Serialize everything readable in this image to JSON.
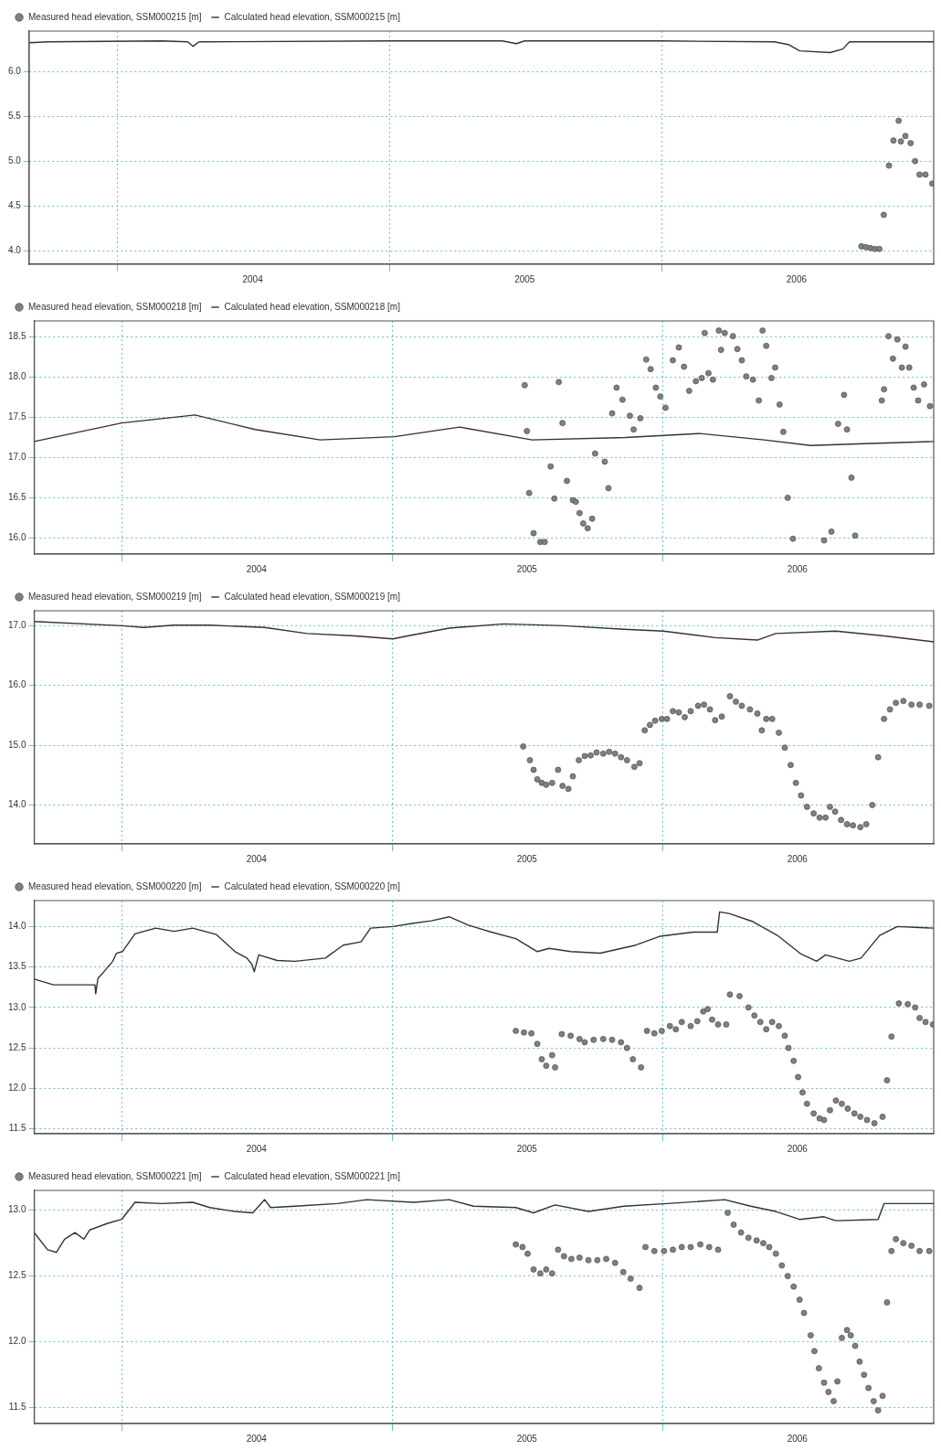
{
  "chart_data": [
    {
      "type": "line",
      "xlim": [
        "2003-09-05",
        "2007-01-01"
      ],
      "xticks": [
        {
          "value": "2004-01-01",
          "label": null
        },
        {
          "value": "2004-07-01",
          "label": "2004"
        },
        {
          "value": "2005-01-01",
          "label": null
        },
        {
          "value": "2005-07-01",
          "label": "2005"
        },
        {
          "value": "2006-01-01",
          "label": null
        },
        {
          "value": "2006-07-01",
          "label": "2006"
        }
      ],
      "ylim": [
        3.85,
        6.45
      ],
      "yticks": [
        {
          "value": 4,
          "label": "4.0"
        },
        {
          "value": 4.5,
          "label": "4.5"
        },
        {
          "value": 5,
          "label": "5.0"
        },
        {
          "value": 5.5,
          "label": "5.5"
        },
        {
          "value": 6,
          "label": "6.0"
        }
      ],
      "grid": true,
      "legend": "top left",
      "series": [
        {
          "name": "Measured head elevation, SSM000215 [m]",
          "type": "scatter",
          "marker": "circle",
          "color": "#808080",
          "x": [
            "2006-09-26",
            "2006-10-02",
            "2006-10-08",
            "2006-10-14",
            "2006-10-20",
            "2006-10-26",
            "2006-11-02",
            "2006-11-08",
            "2006-11-15",
            "2006-11-18",
            "2006-11-24",
            "2006-12-01",
            "2006-12-07",
            "2006-12-13",
            "2006-12-21",
            "2006-12-30"
          ],
          "values": [
            4.05,
            4.04,
            4.03,
            4.02,
            4.02,
            4.4,
            4.95,
            5.23,
            5.45,
            5.22,
            5.28,
            5.2,
            5.0,
            4.85,
            4.85,
            4.75
          ]
        },
        {
          "name": "Calculated head elevation, SSM000215 [m]",
          "type": "line",
          "marker": "none",
          "color": "#333333",
          "x": [
            "2003-09-05",
            "2003-10-01",
            "2004-03-01",
            "2004-04-05",
            "2004-04-12",
            "2004-04-20",
            "2005-01-01",
            "2005-06-01",
            "2005-06-20",
            "2005-07-01",
            "2006-01-01",
            "2006-06-01",
            "2006-06-20",
            "2006-07-05",
            "2006-08-15",
            "2006-09-01",
            "2006-09-10",
            "2007-01-01"
          ],
          "values": [
            6.32,
            6.33,
            6.34,
            6.33,
            6.28,
            6.33,
            6.34,
            6.34,
            6.31,
            6.34,
            6.34,
            6.33,
            6.3,
            6.23,
            6.21,
            6.25,
            6.33,
            6.33
          ]
        }
      ]
    },
    {
      "type": "line",
      "xlim": [
        "2003-09-05",
        "2007-01-01"
      ],
      "xticks": [
        {
          "value": "2004-01-01",
          "label": null
        },
        {
          "value": "2004-07-01",
          "label": "2004"
        },
        {
          "value": "2005-01-01",
          "label": null
        },
        {
          "value": "2005-07-01",
          "label": "2005"
        },
        {
          "value": "2006-01-01",
          "label": null
        },
        {
          "value": "2006-07-01",
          "label": "2006"
        }
      ],
      "ylim": [
        15.8,
        18.7
      ],
      "yticks": [
        {
          "value": 16,
          "label": "16.0"
        },
        {
          "value": 16.5,
          "label": "16.5"
        },
        {
          "value": 17,
          "label": "17.0"
        },
        {
          "value": 17.5,
          "label": "17.5"
        },
        {
          "value": 18,
          "label": "18.0"
        },
        {
          "value": 18.5,
          "label": "18.5"
        }
      ],
      "grid": true,
      "legend": "top left",
      "series": [
        {
          "name": "Measured head elevation, SSM000218 [m]",
          "type": "scatter",
          "marker": "circle",
          "color": "#808080",
          "x": [
            "2005-06-28",
            "2005-07-01",
            "2005-07-04",
            "2005-07-10",
            "2005-07-19",
            "2005-07-25",
            "2005-08-02",
            "2005-08-07",
            "2005-08-13",
            "2005-08-18",
            "2005-08-24",
            "2005-09-01",
            "2005-09-05",
            "2005-09-10",
            "2005-09-15",
            "2005-09-21",
            "2005-09-27",
            "2005-10-01",
            "2005-10-14",
            "2005-10-19",
            "2005-10-24",
            "2005-10-30",
            "2005-11-07",
            "2005-11-17",
            "2005-11-22",
            "2005-12-01",
            "2005-12-09",
            "2005-12-15",
            "2005-12-22",
            "2005-12-28",
            "2006-01-04",
            "2006-01-14",
            "2006-01-22",
            "2006-01-29",
            "2006-02-05",
            "2006-02-14",
            "2006-02-22",
            "2006-02-26",
            "2006-03-03",
            "2006-03-09",
            "2006-03-17",
            "2006-03-20",
            "2006-03-25",
            "2006-04-05",
            "2006-04-11",
            "2006-04-17",
            "2006-04-23",
            "2006-05-02",
            "2006-05-10",
            "2006-05-15",
            "2006-05-20",
            "2006-05-27",
            "2006-06-01",
            "2006-06-07",
            "2006-06-12",
            "2006-06-18",
            "2006-06-25",
            "2006-08-06",
            "2006-08-16",
            "2006-08-25",
            "2006-09-02",
            "2006-09-06",
            "2006-09-12",
            "2006-09-17",
            "2006-10-23",
            "2006-10-26",
            "2006-11-01",
            "2006-11-07",
            "2006-11-13",
            "2006-11-19",
            "2006-11-24",
            "2006-11-29",
            "2006-12-05",
            "2006-12-11",
            "2006-12-19",
            "2006-12-27"
          ],
          "values": [
            17.9,
            17.33,
            16.56,
            16.06,
            15.95,
            15.95,
            16.89,
            16.49,
            17.94,
            17.43,
            16.71,
            16.47,
            16.45,
            16.31,
            16.18,
            16.12,
            16.24,
            17.05,
            16.95,
            16.62,
            17.55,
            17.87,
            17.72,
            17.52,
            17.35,
            17.49,
            18.22,
            18.1,
            17.87,
            17.76,
            17.62,
            18.21,
            18.37,
            18.13,
            17.83,
            17.95,
            17.99,
            18.55,
            18.05,
            17.97,
            18.58,
            18.34,
            18.55,
            18.51,
            18.35,
            18.21,
            18.01,
            17.97,
            17.71,
            18.58,
            18.39,
            17.99,
            18.12,
            17.66,
            17.32,
            16.5,
            15.99,
            15.97,
            16.08,
            17.42,
            17.78,
            17.35,
            16.75,
            16.03,
            17.71,
            17.85,
            18.51,
            18.23,
            18.47,
            18.12,
            18.38,
            18.12,
            17.87,
            17.71,
            17.91,
            17.64
          ]
        },
        {
          "name": "Calculated head elevation, SSM000218 [m]",
          "type": "line",
          "marker": "none",
          "color": "#333333",
          "x": [
            "2003-09-05",
            "2004-01-01",
            "2004-04-09",
            "2004-06-29",
            "2004-09-25",
            "2005-01-03",
            "2005-04-01",
            "2005-07-08",
            "2005-11-11",
            "2006-02-19",
            "2006-05-17",
            "2006-07-19",
            "2006-09-20",
            "2007-01-01"
          ],
          "values": [
            17.2,
            17.43,
            17.53,
            17.35,
            17.22,
            17.26,
            17.38,
            17.22,
            17.25,
            17.3,
            17.22,
            17.15,
            17.17,
            17.2
          ]
        }
      ]
    },
    {
      "type": "line",
      "xlim": [
        "2003-09-05",
        "2007-01-01"
      ],
      "xticks": [
        {
          "value": "2004-01-01",
          "label": null
        },
        {
          "value": "2004-07-01",
          "label": "2004"
        },
        {
          "value": "2005-01-01",
          "label": null
        },
        {
          "value": "2005-07-01",
          "label": "2005"
        },
        {
          "value": "2006-01-01",
          "label": null
        },
        {
          "value": "2006-07-01",
          "label": "2006"
        }
      ],
      "ylim": [
        13.35,
        17.25
      ],
      "yticks": [
        {
          "value": 14,
          "label": "14.0"
        },
        {
          "value": 15,
          "label": "15.0"
        },
        {
          "value": 16,
          "label": "16.0"
        },
        {
          "value": 17,
          "label": "17.0"
        }
      ],
      "grid": true,
      "legend": "top left",
      "series": [
        {
          "name": "Measured head elevation, SSM000219 [m]",
          "type": "scatter",
          "marker": "circle",
          "color": "#808080",
          "x": [
            "2005-06-26",
            "2005-07-05",
            "2005-07-10",
            "2005-07-15",
            "2005-07-21",
            "2005-07-27",
            "2005-08-04",
            "2005-08-12",
            "2005-08-18",
            "2005-08-26",
            "2005-09-01",
            "2005-09-09",
            "2005-09-17",
            "2005-09-25",
            "2005-10-03",
            "2005-10-12",
            "2005-10-20",
            "2005-10-28",
            "2005-11-05",
            "2005-11-13",
            "2005-11-23",
            "2005-11-30",
            "2005-12-07",
            "2005-12-14",
            "2005-12-21",
            "2005-12-30",
            "2006-01-06",
            "2006-01-14",
            "2006-01-22",
            "2006-01-30",
            "2006-02-07",
            "2006-02-17",
            "2006-02-25",
            "2006-03-05",
            "2006-03-12",
            "2006-03-21",
            "2006-04-01",
            "2006-04-09",
            "2006-04-17",
            "2006-04-28",
            "2006-05-08",
            "2006-05-14",
            "2006-05-20",
            "2006-05-28",
            "2006-06-06",
            "2006-06-14",
            "2006-06-22",
            "2006-06-29",
            "2006-07-06",
            "2006-07-14",
            "2006-07-23",
            "2006-07-31",
            "2006-08-08",
            "2006-08-14",
            "2006-08-21",
            "2006-08-29",
            "2006-09-06",
            "2006-09-14",
            "2006-09-24",
            "2006-10-02",
            "2006-10-10",
            "2006-10-18",
            "2006-10-26",
            "2006-11-03",
            "2006-11-11",
            "2006-11-21",
            "2006-12-02",
            "2006-12-13",
            "2006-12-26"
          ],
          "values": [
            14.98,
            14.75,
            14.59,
            14.43,
            14.37,
            14.34,
            14.37,
            14.59,
            14.32,
            14.27,
            14.48,
            14.75,
            14.82,
            14.83,
            14.88,
            14.86,
            14.89,
            14.86,
            14.8,
            14.75,
            14.64,
            14.7,
            15.25,
            15.34,
            15.41,
            15.44,
            15.44,
            15.57,
            15.55,
            15.47,
            15.57,
            15.66,
            15.68,
            15.6,
            15.42,
            15.48,
            15.82,
            15.73,
            15.66,
            15.6,
            15.53,
            15.25,
            15.44,
            15.44,
            15.21,
            14.96,
            14.67,
            14.37,
            14.16,
            13.97,
            13.86,
            13.79,
            13.79,
            13.97,
            13.89,
            13.75,
            13.68,
            13.66,
            13.63,
            13.68,
            14.0,
            14.8,
            15.44,
            15.6,
            15.71,
            15.74,
            15.68,
            15.68,
            15.66
          ]
        },
        {
          "name": "Calculated head elevation, SSM000219 [m]",
          "type": "line",
          "marker": "none",
          "color": "#333333",
          "x": [
            "2003-09-05",
            "2004-01-01",
            "2004-01-31",
            "2004-03-12",
            "2004-04-29",
            "2004-07-12",
            "2004-09-07",
            "2004-11-11",
            "2005-01-01",
            "2005-01-21",
            "2005-03-18",
            "2005-05-31",
            "2005-08-20",
            "2005-11-09",
            "2006-01-01",
            "2006-03-12",
            "2006-05-08",
            "2006-06-02",
            "2006-08-22",
            "2006-10-26",
            "2007-01-01"
          ],
          "values": [
            17.07,
            17.0,
            16.97,
            17.01,
            17.01,
            16.97,
            16.87,
            16.83,
            16.78,
            16.83,
            16.96,
            17.03,
            17.0,
            16.94,
            16.91,
            16.8,
            16.76,
            16.87,
            16.91,
            16.83,
            16.73
          ]
        }
      ]
    },
    {
      "type": "line",
      "xlim": [
        "2003-09-05",
        "2007-01-01"
      ],
      "xticks": [
        {
          "value": "2004-01-01",
          "label": null
        },
        {
          "value": "2004-07-01",
          "label": "2004"
        },
        {
          "value": "2005-01-01",
          "label": null
        },
        {
          "value": "2005-07-01",
          "label": "2005"
        },
        {
          "value": "2006-01-01",
          "label": null
        },
        {
          "value": "2006-07-01",
          "label": "2006"
        }
      ],
      "ylim": [
        11.44,
        14.32
      ],
      "yticks": [
        {
          "value": 11.5,
          "label": "11.5"
        },
        {
          "value": 12,
          "label": "12.0"
        },
        {
          "value": 12.5,
          "label": "12.5"
        },
        {
          "value": 13,
          "label": "13.0"
        },
        {
          "value": 13.5,
          "label": "13.5"
        },
        {
          "value": 14,
          "label": "14.0"
        }
      ],
      "grid": true,
      "legend": "top left",
      "series": [
        {
          "name": "Measured head elevation, SSM000220 [m]",
          "type": "scatter",
          "marker": "circle",
          "color": "#808080",
          "x": [
            "2005-06-16",
            "2005-06-27",
            "2005-07-07",
            "2005-07-15",
            "2005-07-21",
            "2005-07-27",
            "2005-08-04",
            "2005-08-08",
            "2005-08-17",
            "2005-08-29",
            "2005-09-10",
            "2005-09-17",
            "2005-09-29",
            "2005-10-12",
            "2005-10-24",
            "2005-11-05",
            "2005-11-13",
            "2005-11-21",
            "2005-12-02",
            "2005-12-10",
            "2005-12-20",
            "2005-12-30",
            "2006-01-10",
            "2006-01-18",
            "2006-01-26",
            "2006-02-07",
            "2006-02-16",
            "2006-02-24",
            "2006-03-02",
            "2006-03-08",
            "2006-03-16",
            "2006-03-27",
            "2006-04-01",
            "2006-04-14",
            "2006-04-26",
            "2006-05-04",
            "2006-05-12",
            "2006-05-20",
            "2006-05-28",
            "2006-06-06",
            "2006-06-14",
            "2006-06-19",
            "2006-06-26",
            "2006-07-02",
            "2006-07-08",
            "2006-07-14",
            "2006-07-23",
            "2006-07-31",
            "2006-08-06",
            "2006-08-14",
            "2006-08-22",
            "2006-08-30",
            "2006-09-07",
            "2006-09-16",
            "2006-09-24",
            "2006-10-03",
            "2006-10-13",
            "2006-10-24",
            "2006-10-30",
            "2006-11-05",
            "2006-11-15",
            "2006-11-27",
            "2006-12-07",
            "2006-12-13",
            "2006-12-21",
            "2006-12-31"
          ],
          "values": [
            12.71,
            12.69,
            12.68,
            12.55,
            12.36,
            12.28,
            12.41,
            12.26,
            12.67,
            12.65,
            12.61,
            12.57,
            12.6,
            12.61,
            12.6,
            12.57,
            12.5,
            12.36,
            12.26,
            12.71,
            12.68,
            12.71,
            12.77,
            12.73,
            12.82,
            12.77,
            12.83,
            12.95,
            12.98,
            12.85,
            12.79,
            12.79,
            13.16,
            13.14,
            13.0,
            12.9,
            12.82,
            12.73,
            12.82,
            12.77,
            12.65,
            12.5,
            12.34,
            12.14,
            11.95,
            11.81,
            11.69,
            11.63,
            11.61,
            11.73,
            11.85,
            11.81,
            11.75,
            11.69,
            11.65,
            11.61,
            11.57,
            11.65,
            12.1,
            12.64,
            13.05,
            13.04,
            13.0,
            12.87,
            12.82,
            12.79
          ]
        },
        {
          "name": "Calculated head elevation, SSM000220 [m]",
          "type": "line",
          "marker": "none",
          "color": "#333333",
          "x": [
            "2003-09-05",
            "2003-10-01",
            "2003-11-26",
            "2003-11-27",
            "2003-11-30",
            "2003-12-08",
            "2003-12-20",
            "2003-12-25",
            "2004-01-02",
            "2004-01-19",
            "2004-02-16",
            "2004-03-12",
            "2004-04-06",
            "2004-05-08",
            "2004-06-02",
            "2004-06-18",
            "2004-06-25",
            "2004-06-28",
            "2004-07-04",
            "2004-07-29",
            "2004-08-22",
            "2004-10-02",
            "2004-10-26",
            "2004-11-19",
            "2004-12-02",
            "2005-01-01",
            "2005-01-29",
            "2005-02-22",
            "2005-03-18",
            "2005-04-12",
            "2005-05-14",
            "2005-06-16",
            "2005-07-15",
            "2005-07-31",
            "2005-08-29",
            "2005-10-08",
            "2005-11-25",
            "2005-12-28",
            "2006-02-10",
            "2006-03-15",
            "2006-03-18",
            "2006-03-31",
            "2006-05-02",
            "2006-06-04",
            "2006-07-06",
            "2006-07-27",
            "2006-08-08",
            "2006-09-09",
            "2006-09-25",
            "2006-10-20",
            "2006-11-13",
            "2006-12-07",
            "2007-01-01"
          ],
          "values": [
            13.35,
            13.28,
            13.28,
            13.17,
            13.36,
            13.44,
            13.57,
            13.67,
            13.69,
            13.91,
            13.98,
            13.94,
            13.98,
            13.9,
            13.69,
            13.61,
            13.53,
            13.44,
            13.65,
            13.58,
            13.57,
            13.61,
            13.77,
            13.81,
            13.98,
            14.0,
            14.04,
            14.07,
            14.12,
            14.02,
            13.93,
            13.85,
            13.69,
            13.73,
            13.69,
            13.67,
            13.77,
            13.88,
            13.93,
            13.93,
            14.18,
            14.16,
            14.06,
            13.89,
            13.66,
            13.57,
            13.65,
            13.57,
            13.61,
            13.89,
            14.0,
            13.99,
            13.98
          ]
        }
      ]
    },
    {
      "type": "line",
      "xlim": [
        "2003-09-05",
        "2007-01-01"
      ],
      "xticks": [
        {
          "value": "2004-01-01",
          "label": null
        },
        {
          "value": "2004-07-01",
          "label": "2004"
        },
        {
          "value": "2005-01-01",
          "label": null
        },
        {
          "value": "2005-07-01",
          "label": "2005"
        },
        {
          "value": "2006-01-01",
          "label": null
        },
        {
          "value": "2006-07-01",
          "label": "2006"
        }
      ],
      "ylim": [
        11.38,
        13.15
      ],
      "yticks": [
        {
          "value": 11.5,
          "label": "11.5"
        },
        {
          "value": 12,
          "label": "12.0"
        },
        {
          "value": 12.5,
          "label": "12.5"
        },
        {
          "value": 13,
          "label": "13.0"
        }
      ],
      "grid": true,
      "legend": "top left",
      "series": [
        {
          "name": "Measured head elevation, SSM000221 [m]",
          "type": "scatter",
          "marker": "circle",
          "color": "#808080",
          "x": [
            "2005-06-16",
            "2005-06-25",
            "2005-07-02",
            "2005-07-10",
            "2005-07-19",
            "2005-07-27",
            "2005-08-04",
            "2005-08-12",
            "2005-08-20",
            "2005-08-30",
            "2005-09-10",
            "2005-09-22",
            "2005-10-04",
            "2005-10-16",
            "2005-10-28",
            "2005-11-08",
            "2005-11-18",
            "2005-11-30",
            "2005-12-08",
            "2005-12-20",
            "2006-01-02",
            "2006-01-14",
            "2006-01-26",
            "2006-02-07",
            "2006-02-20",
            "2006-03-04",
            "2006-03-16",
            "2006-03-29",
            "2006-04-06",
            "2006-04-16",
            "2006-04-26",
            "2006-05-07",
            "2006-05-16",
            "2006-05-24",
            "2006-06-02",
            "2006-06-10",
            "2006-06-18",
            "2006-06-26",
            "2006-07-04",
            "2006-07-10",
            "2006-07-19",
            "2006-07-24",
            "2006-07-30",
            "2006-08-06",
            "2006-08-12",
            "2006-08-19",
            "2006-08-24",
            "2006-08-30",
            "2006-09-06",
            "2006-09-11",
            "2006-09-17",
            "2006-09-23",
            "2006-09-29",
            "2006-10-05",
            "2006-10-12",
            "2006-10-18",
            "2006-10-24",
            "2006-10-30",
            "2006-11-05",
            "2006-11-11",
            "2006-11-21",
            "2006-12-02",
            "2006-12-13",
            "2006-12-26"
          ],
          "values": [
            12.74,
            12.72,
            12.67,
            12.55,
            12.52,
            12.55,
            12.52,
            12.7,
            12.65,
            12.63,
            12.64,
            12.62,
            12.62,
            12.63,
            12.6,
            12.53,
            12.48,
            12.41,
            12.72,
            12.69,
            12.69,
            12.7,
            12.72,
            12.72,
            12.74,
            12.72,
            12.7,
            12.98,
            12.89,
            12.83,
            12.79,
            12.77,
            12.75,
            12.72,
            12.67,
            12.58,
            12.5,
            12.42,
            12.32,
            12.22,
            12.05,
            11.93,
            11.8,
            11.69,
            11.62,
            11.55,
            11.7,
            12.03,
            12.09,
            12.05,
            11.97,
            11.85,
            11.75,
            11.65,
            11.55,
            11.48,
            11.59,
            12.3,
            12.69,
            12.78,
            12.75,
            12.73,
            12.69,
            12.69
          ]
        },
        {
          "name": "Calculated head elevation, SSM000221 [m]",
          "type": "line",
          "marker": "none",
          "color": "#333333",
          "x": [
            "2003-09-05",
            "2003-09-23",
            "2003-10-05",
            "2003-10-16",
            "2003-10-30",
            "2003-11-11",
            "2003-11-19",
            "2003-12-13",
            "2004-01-01",
            "2004-01-19",
            "2004-02-24",
            "2004-04-06",
            "2004-04-29",
            "2004-06-02",
            "2004-06-26",
            "2004-07-12",
            "2004-07-20",
            "2004-08-22",
            "2004-10-18",
            "2004-11-27",
            "2005-01-29",
            "2005-03-18",
            "2005-04-20",
            "2005-06-16",
            "2005-07-10",
            "2005-08-08",
            "2005-09-22",
            "2005-11-09",
            "2006-01-06",
            "2006-03-25",
            "2006-04-29",
            "2006-06-02",
            "2006-07-04",
            "2006-08-06",
            "2006-08-22",
            "2006-10-18",
            "2006-10-26",
            "2007-01-01"
          ],
          "values": [
            12.83,
            12.7,
            12.68,
            12.78,
            12.83,
            12.78,
            12.85,
            12.9,
            12.93,
            13.06,
            13.05,
            13.06,
            13.02,
            12.99,
            12.98,
            13.08,
            13.02,
            13.03,
            13.05,
            13.08,
            13.06,
            13.08,
            13.03,
            13.02,
            12.98,
            13.04,
            12.99,
            13.03,
            13.05,
            13.08,
            13.03,
            12.99,
            12.93,
            12.95,
            12.92,
            12.93,
            13.05,
            13.05
          ]
        }
      ]
    }
  ]
}
